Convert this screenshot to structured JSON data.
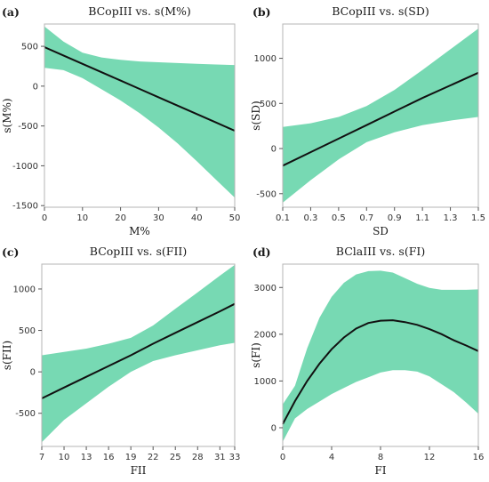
{
  "colors": {
    "band": "#77d9b3",
    "line": "#111111",
    "frame": "#b5b5b5"
  },
  "chart_data": [
    {
      "panel_label": "(a)",
      "title": "BCopIII vs. s(M%)",
      "type": "line",
      "xlabel": "M%",
      "ylabel": "s(M%)",
      "xlim": [
        0,
        50
      ],
      "ylim": [
        -1520,
        780
      ],
      "xticks": [
        0,
        10,
        20,
        30,
        40,
        50
      ],
      "xtick_labels": [
        "0",
        "10",
        "20",
        "30",
        "40",
        "50"
      ],
      "yticks": [
        -1500,
        -1000,
        -500,
        0,
        500
      ],
      "ytick_labels": [
        "-1500",
        "-1000",
        "-500",
        "0",
        "500"
      ],
      "x": [
        0,
        5,
        10,
        15,
        20,
        25,
        30,
        35,
        40,
        45,
        50
      ],
      "fit": [
        490,
        385,
        280,
        175,
        70,
        -35,
        -140,
        -245,
        -350,
        -455,
        -560
      ],
      "upper": [
        750,
        560,
        420,
        360,
        330,
        310,
        300,
        290,
        280,
        272,
        265
      ],
      "lower": [
        230,
        200,
        100,
        -40,
        -180,
        -340,
        -520,
        -720,
        -940,
        -1170,
        -1400
      ]
    },
    {
      "panel_label": "(b)",
      "title": "BCopIII vs. s(SD)",
      "type": "line",
      "xlabel": "SD",
      "ylabel": "s(SD)",
      "xlim": [
        0.1,
        1.5
      ],
      "ylim": [
        -650,
        1380
      ],
      "xticks": [
        0.1,
        0.3,
        0.5,
        0.7,
        0.9,
        1.1,
        1.3,
        1.5
      ],
      "xtick_labels": [
        "0.1",
        "0.3",
        "0.5",
        "0.7",
        "0.9",
        "1.1",
        "1.3",
        "1.5"
      ],
      "yticks": [
        -500,
        0,
        500,
        1000
      ],
      "ytick_labels": [
        "-500",
        "0",
        "500",
        "1000"
      ],
      "x": [
        0.1,
        0.3,
        0.5,
        0.7,
        0.9,
        1.1,
        1.3,
        1.5
      ],
      "fit": [
        -190,
        -40,
        110,
        260,
        410,
        560,
        700,
        840
      ],
      "upper": [
        240,
        280,
        350,
        470,
        650,
        870,
        1100,
        1330
      ],
      "lower": [
        -600,
        -350,
        -120,
        70,
        180,
        260,
        310,
        350
      ]
    },
    {
      "panel_label": "(c)",
      "title": "BCopIII vs. s(FII)",
      "type": "line",
      "xlabel": "FII",
      "ylabel": "s(FII)",
      "xlim": [
        7,
        33
      ],
      "ylim": [
        -900,
        1300
      ],
      "xticks": [
        7,
        10,
        13,
        16,
        19,
        22,
        25,
        28,
        31,
        33
      ],
      "xtick_labels": [
        "7",
        "10",
        "13",
        "16",
        "19",
        "22",
        "25",
        "28",
        "31",
        "33"
      ],
      "yticks": [
        -500,
        0,
        500,
        1000
      ],
      "ytick_labels": [
        "-500",
        "0",
        "500",
        "1000"
      ],
      "x": [
        7,
        10,
        13,
        16,
        19,
        22,
        25,
        28,
        31,
        33
      ],
      "fit": [
        -320,
        -190,
        -60,
        70,
        200,
        340,
        470,
        600,
        730,
        820
      ],
      "upper": [
        200,
        240,
        280,
        340,
        410,
        560,
        760,
        960,
        1160,
        1290
      ],
      "lower": [
        -850,
        -580,
        -380,
        -180,
        0,
        130,
        200,
        260,
        320,
        350
      ]
    },
    {
      "panel_label": "(d)",
      "title": "BClaIII vs. s(FI)",
      "type": "line",
      "xlabel": "FI",
      "ylabel": "s(FI)",
      "xlim": [
        0,
        16
      ],
      "ylim": [
        -400,
        3500
      ],
      "xticks": [
        0,
        4,
        8,
        12,
        16
      ],
      "xtick_labels": [
        "0",
        "4",
        "8",
        "12",
        "16"
      ],
      "yticks": [
        0,
        1000,
        2000,
        3000
      ],
      "ytick_labels": [
        "0",
        "1000",
        "2000",
        "3000"
      ],
      "x": [
        0,
        1,
        2,
        3,
        4,
        5,
        6,
        7,
        8,
        9,
        10,
        11,
        12,
        13,
        14,
        15,
        16
      ],
      "fit": [
        80,
        570,
        1000,
        1370,
        1680,
        1930,
        2120,
        2240,
        2290,
        2300,
        2260,
        2200,
        2110,
        2000,
        1870,
        1760,
        1640
      ],
      "upper": [
        500,
        900,
        1700,
        2350,
        2800,
        3100,
        3280,
        3350,
        3360,
        3320,
        3200,
        3080,
        2990,
        2950,
        2950,
        2950,
        2960
      ],
      "lower": [
        -300,
        200,
        400,
        560,
        720,
        850,
        980,
        1080,
        1180,
        1230,
        1230,
        1200,
        1100,
        930,
        760,
        540,
        300
      ]
    }
  ]
}
